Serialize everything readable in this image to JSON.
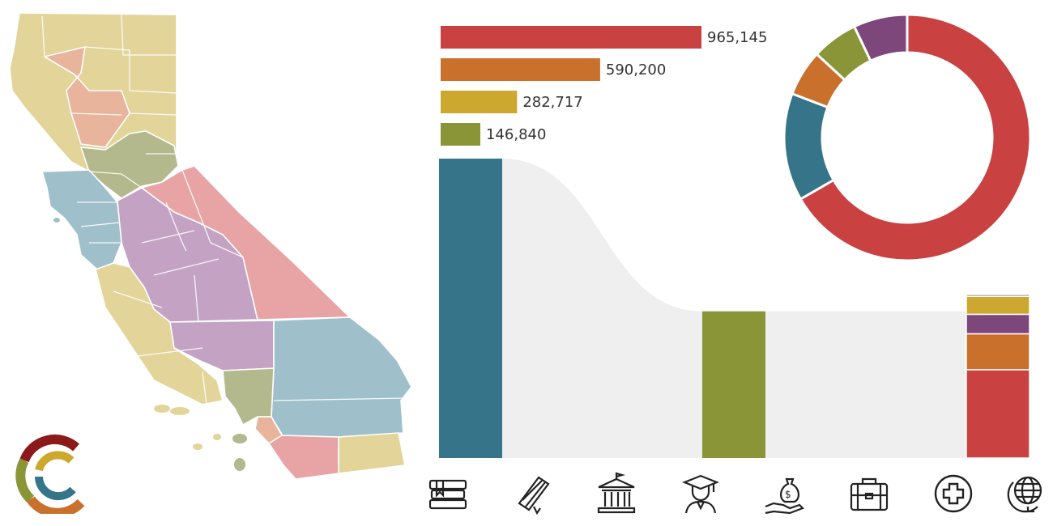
{
  "colors": {
    "red": "#c94141",
    "orange": "#c9712c",
    "gold": "#cca82f",
    "olive": "#8a9538",
    "teal": "#357489",
    "purple": "#7d477c",
    "flow": "#efefef",
    "map_tan": "#e3d49a",
    "map_salmon": "#e8b49b",
    "map_sage": "#b3b98d",
    "map_blue": "#9fbfcb",
    "map_lavender": "#c3a2c3",
    "map_pink": "#e8a4a4"
  },
  "chart_data": [
    {
      "type": "bar",
      "orientation": "horizontal",
      "categories": [
        "",
        "",
        "",
        ""
      ],
      "values": [
        965145,
        590200,
        282717,
        146840
      ],
      "value_labels": [
        "965,145",
        "590,200",
        "282,717",
        "146,840"
      ],
      "bar_colors": [
        "#c94141",
        "#c9712c",
        "#cca82f",
        "#8a9538"
      ],
      "xlim": [
        0,
        965145
      ]
    },
    {
      "type": "pie",
      "style": "donut",
      "values": [
        66,
        14,
        6,
        6,
        7
      ],
      "slice_colors": [
        "#c94141",
        "#357489",
        "#c9712c",
        "#8a9538",
        "#7d477c"
      ]
    },
    {
      "type": "sankey",
      "nodes": [
        {
          "stage": 0,
          "value": 100,
          "color": "#357489"
        },
        {
          "stage": 1,
          "value": 49,
          "color": "#8a9538"
        },
        {
          "stage": 2,
          "value": 49,
          "segments": [
            {
              "value": 29.5,
              "color": "#c94141"
            },
            {
              "value": 12,
              "color": "#c9712c"
            },
            {
              "value": 6.5,
              "color": "#7d477c"
            },
            {
              "value": 6,
              "color": "#cca82f"
            },
            {
              "value": 0.6,
              "color": "#6a6a6a"
            }
          ]
        }
      ]
    }
  ],
  "icons": [
    {
      "name": "books-icon"
    },
    {
      "name": "diploma-scroll-icon"
    },
    {
      "name": "university-building-icon"
    },
    {
      "name": "graduate-icon"
    },
    {
      "name": "money-bag-hand-icon"
    },
    {
      "name": "briefcase-icon"
    },
    {
      "name": "medical-cross-icon"
    },
    {
      "name": "globe-icon"
    }
  ],
  "logo": {
    "name": "c-logo-icon"
  }
}
